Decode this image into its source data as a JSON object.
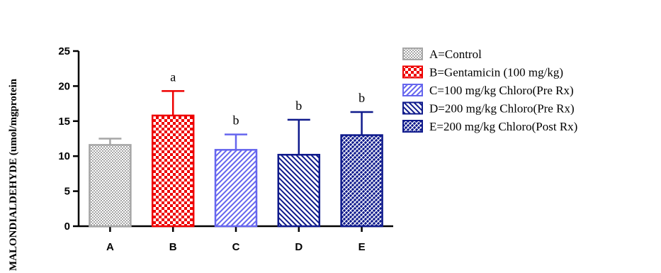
{
  "chart_data": {
    "type": "bar",
    "title": "",
    "xlabel": "",
    "ylabel": "MALONDIALDEHYDE (umol/mgprotein",
    "ylim": [
      0,
      25
    ],
    "yticks": [
      0,
      5,
      10,
      15,
      20,
      25
    ],
    "categories": [
      "A",
      "B",
      "C",
      "D",
      "E"
    ],
    "values": [
      11.6,
      15.8,
      10.9,
      10.2,
      13.0
    ],
    "errors": [
      0.9,
      3.5,
      2.2,
      5.0,
      3.3
    ],
    "significance": [
      "",
      "a",
      "b",
      "b",
      "b"
    ],
    "legend_position": "right",
    "legend": [
      {
        "label": "A=Control",
        "pattern": "dots",
        "color": "#a6a6a6"
      },
      {
        "label": "B=Gentamicin (100 mg/kg)",
        "pattern": "checker",
        "color": "#ee0000"
      },
      {
        "label": "C=100 mg/kg Chloro(Pre Rx)",
        "pattern": "diagonal-right",
        "color": "#6666ee"
      },
      {
        "label": "D=200 mg/kg Chloro(Pre Rx)",
        "pattern": "diagonal-left",
        "color": "#0f1a8c"
      },
      {
        "label": "E=200 mg/kg Chloro(Post Rx)",
        "pattern": "crosshatch",
        "color": "#0f1a8c"
      }
    ]
  }
}
